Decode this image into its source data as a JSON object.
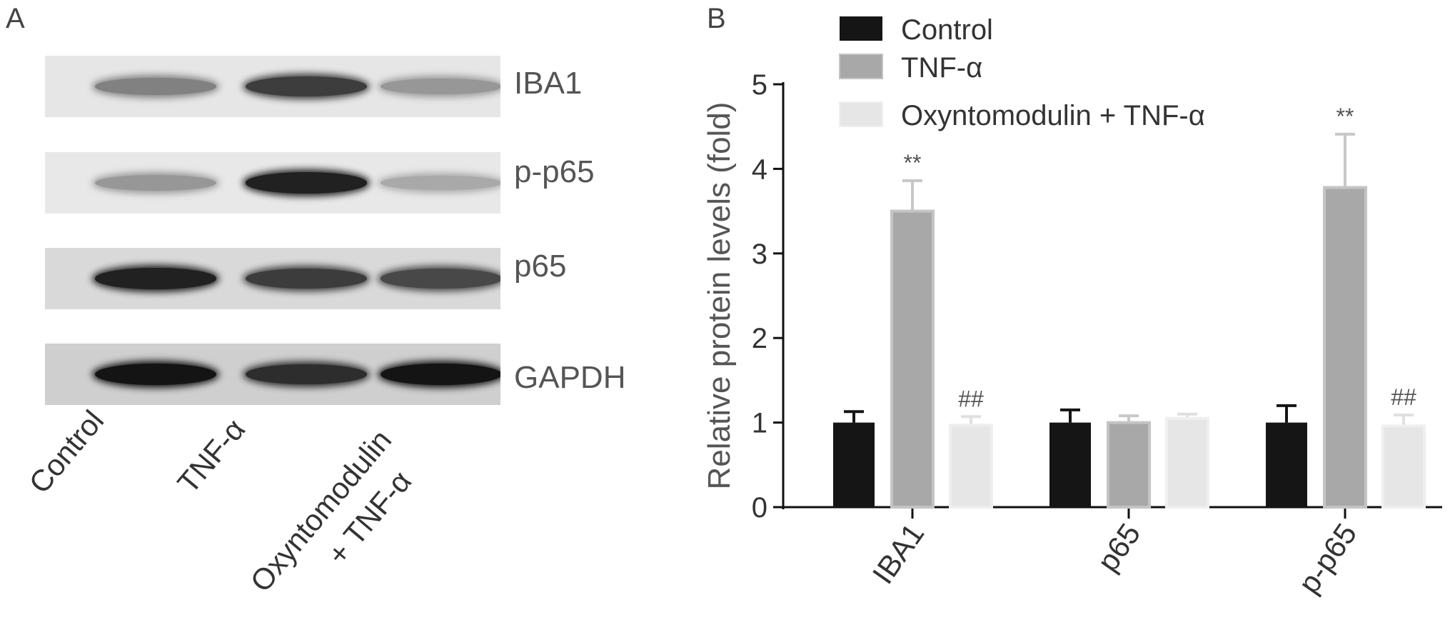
{
  "panel_a": {
    "letter": "A",
    "lanes": [
      "Control",
      "TNF-α",
      "Oxyntomodulin",
      "+ TNF-α"
    ],
    "blots": [
      {
        "label": "IBA1",
        "background": "#e6e6e6",
        "intensities": [
          0.55,
          0.85,
          0.45
        ]
      },
      {
        "label": "p-p65",
        "background": "#e8e8e8",
        "intensities": [
          0.45,
          0.95,
          0.35
        ]
      },
      {
        "label": "p65",
        "background": "#d9d9d9",
        "intensities": [
          0.95,
          0.85,
          0.8
        ]
      },
      {
        "label": "GAPDH",
        "background": "#cfcfcf",
        "intensities": [
          1.0,
          0.9,
          1.0
        ]
      }
    ]
  },
  "panel_b": {
    "letter": "B"
  },
  "chart_data": {
    "type": "bar",
    "title": "",
    "xlabel": "",
    "ylabel": "Relative protein levels (fold)",
    "ylim": [
      0,
      5
    ],
    "yticks": [
      "0",
      "1",
      "2",
      "3",
      "4",
      "5"
    ],
    "categories": [
      "IBA1",
      "p65",
      "p-p65"
    ],
    "series": [
      {
        "name": "Control",
        "color": "#151515",
        "values": [
          1.0,
          1.0,
          1.0
        ],
        "errors": [
          0.13,
          0.15,
          0.2
        ],
        "annotations": [
          "",
          "",
          ""
        ]
      },
      {
        "name": "TNF-α",
        "color": "#a8a8a8",
        "values": [
          3.5,
          1.0,
          3.78
        ],
        "errors": [
          0.36,
          0.08,
          0.63
        ],
        "annotations": [
          "**",
          "",
          "**"
        ]
      },
      {
        "name": "Oxyntomodulin + TNF-α",
        "color": "#e6e6e6",
        "values": [
          0.97,
          1.05,
          0.96
        ],
        "errors": [
          0.1,
          0.05,
          0.13
        ],
        "annotations": [
          "##",
          "",
          "##"
        ]
      }
    ],
    "legend_position": "top",
    "grid": false
  }
}
